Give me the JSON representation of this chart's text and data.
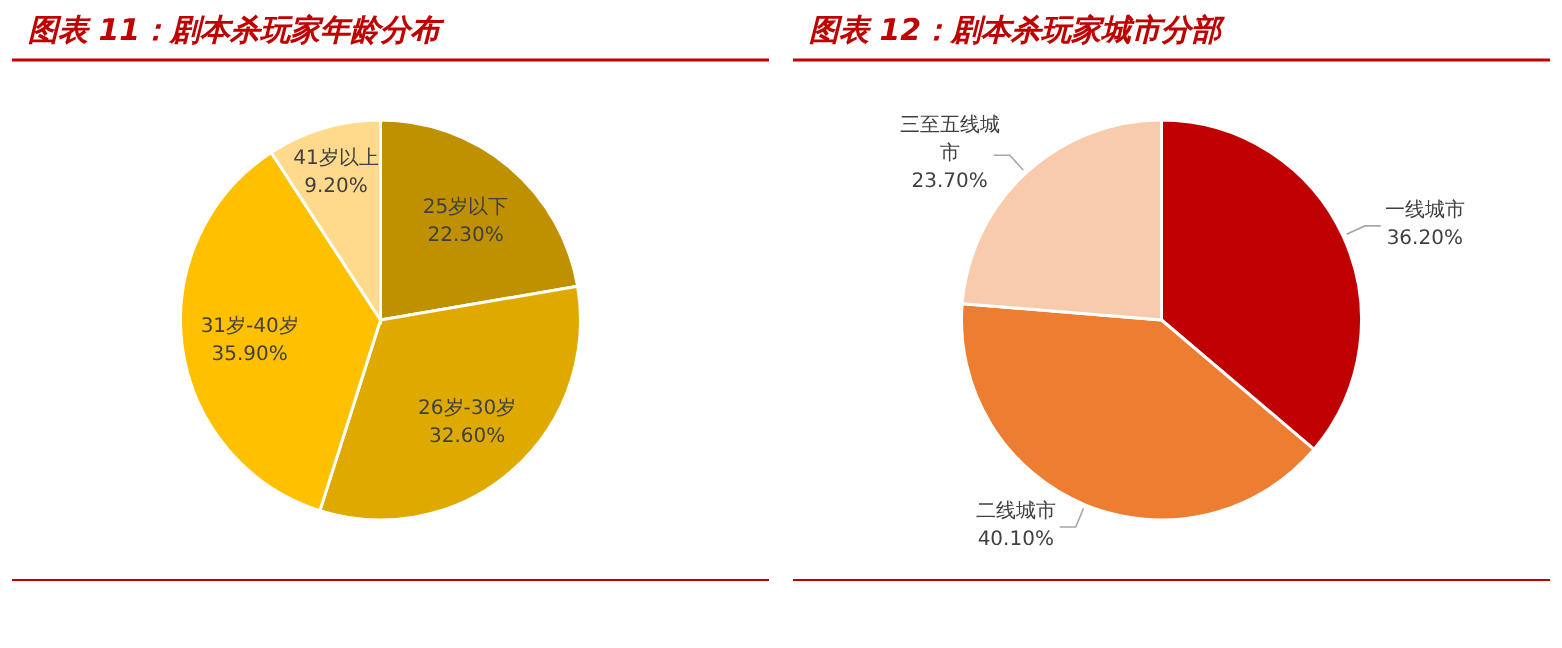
{
  "chart_data": [
    {
      "type": "pie",
      "title": "图表 11：剧本杀玩家年龄分布",
      "categories": [
        "25岁以下",
        "26岁-30岁",
        "31岁-40岁",
        "41岁以上"
      ],
      "values": [
        22.3,
        32.6,
        35.9,
        9.2
      ],
      "value_labels": [
        "22.30%",
        "32.60%",
        "35.90%",
        "9.20%"
      ],
      "colors": [
        "#bf9000",
        "#deaa00",
        "#ffc000",
        "#ffd98c"
      ]
    },
    {
      "type": "pie",
      "title": "图表 12：剧本杀玩家城市分部",
      "categories": [
        "一线城市",
        "二线城市",
        "三至五线城市"
      ],
      "values": [
        36.2,
        40.1,
        23.7
      ],
      "value_labels": [
        "36.20%",
        "40.10%",
        "23.70%"
      ],
      "colors": [
        "#c00000",
        "#ed7d31",
        "#f8cbad"
      ]
    }
  ]
}
